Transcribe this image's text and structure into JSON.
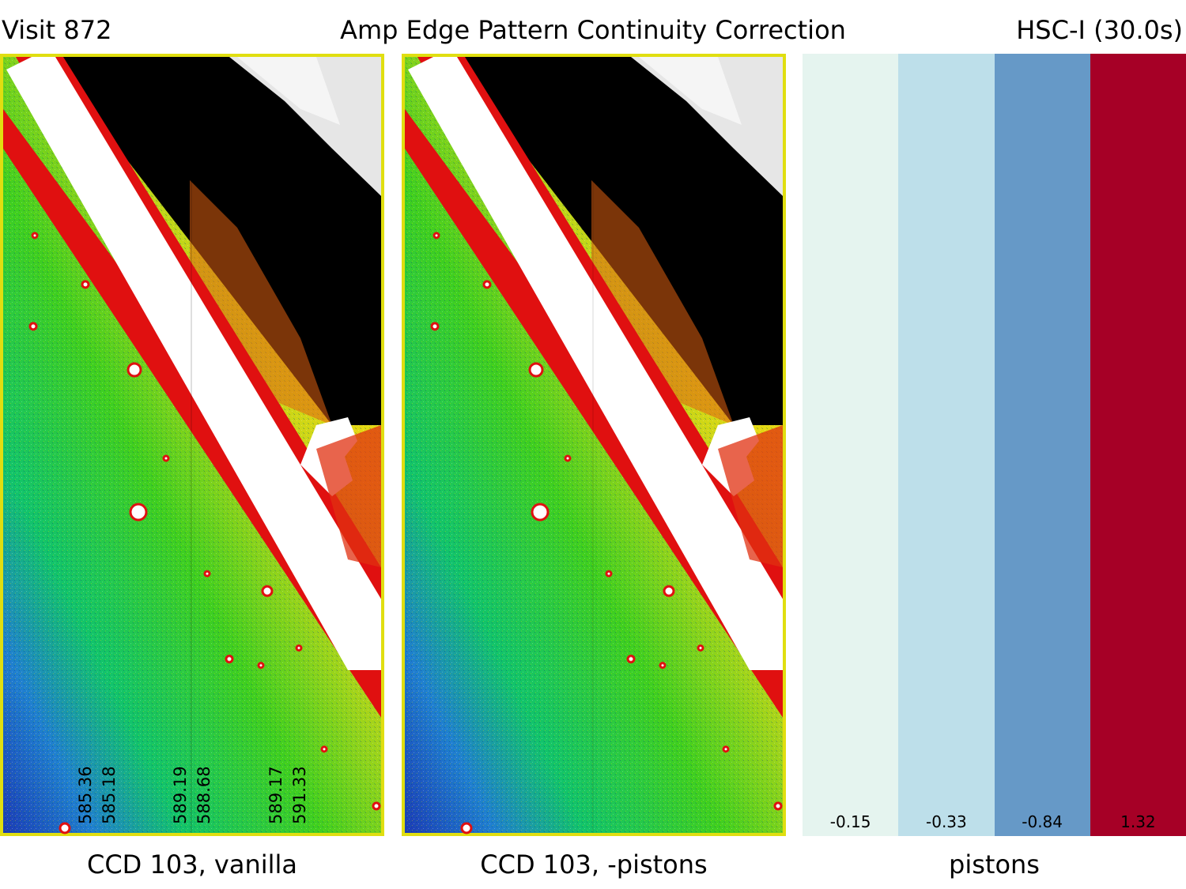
{
  "header": {
    "visit": "Visit 872",
    "title": "Amp Edge Pattern Continuity Correction",
    "filter": "HSC-I (30.0s)"
  },
  "panels": [
    {
      "caption": "CCD 103, vanilla",
      "amp_values": [
        "585.36",
        "585.18",
        "589.19",
        "588.68",
        "589.17",
        "591.33"
      ]
    },
    {
      "caption": "CCD 103, -pistons"
    }
  ],
  "pistons": {
    "caption": "pistons",
    "values": [
      "-0.15",
      "-0.33",
      "-0.84",
      "1.32"
    ],
    "colors": [
      "#e5f4ef",
      "#bddfea",
      "#6699c7",
      "#a60026"
    ]
  }
}
